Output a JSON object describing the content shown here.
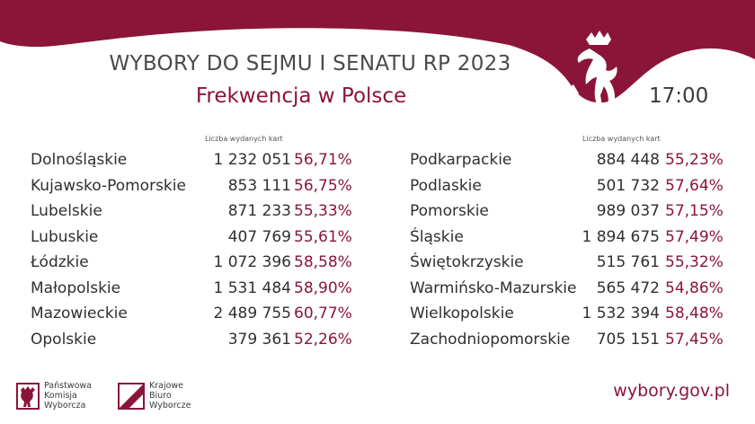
{
  "header": {
    "title": "WYBORY DO SEJMU I SENATU RP 2023",
    "subtitle": "Frekwencja w Polsce",
    "time": "17:00"
  },
  "columns": {
    "header_label": "Liczba wydanych kart",
    "left": [
      {
        "region": "Dolnośląskie",
        "cards": "1 232 051",
        "pct": "56,71%"
      },
      {
        "region": "Kujawsko-Pomorskie",
        "cards": "853 111",
        "pct": "56,75%"
      },
      {
        "region": "Lubelskie",
        "cards": "871 233",
        "pct": "55,33%"
      },
      {
        "region": "Lubuskie",
        "cards": "407 769",
        "pct": "55,61%"
      },
      {
        "region": "Łódzkie",
        "cards": "1 072 396",
        "pct": "58,58%"
      },
      {
        "region": "Małopolskie",
        "cards": "1 531 484",
        "pct": "58,90%"
      },
      {
        "region": "Mazowieckie",
        "cards": "2 489 755",
        "pct": "60,77%"
      },
      {
        "region": "Opolskie",
        "cards": "379 361",
        "pct": "52,26%"
      }
    ],
    "right": [
      {
        "region": "Podkarpackie",
        "cards": "884 448",
        "pct": "55,23%"
      },
      {
        "region": "Podlaskie",
        "cards": "501 732",
        "pct": "57,64%"
      },
      {
        "region": "Pomorskie",
        "cards": "989 037",
        "pct": "57,15%"
      },
      {
        "region": "Śląskie",
        "cards": "1 894 675",
        "pct": "57,49%"
      },
      {
        "region": "Świętokrzyskie",
        "cards": "515 761",
        "pct": "55,32%"
      },
      {
        "region": "Warmińsko-Mazurskie",
        "cards": "565 472",
        "pct": "54,86%"
      },
      {
        "region": "Wielkopolskie",
        "cards": "1 532 394",
        "pct": "58,48%"
      },
      {
        "region": "Zachodniopomorskie",
        "cards": "705 151",
        "pct": "57,45%"
      }
    ]
  },
  "footer": {
    "pkw_lines": [
      "Państwowa",
      "Komisja",
      "Wyborcza"
    ],
    "kbw_lines": [
      "Krajowe",
      "Biuro",
      "Wyborcze"
    ],
    "url": "wybory.gov.pl"
  },
  "colors": {
    "accent": "#8a1538",
    "text": "#3a3a3a"
  },
  "icons": [
    "eagle-icon",
    "pkw-logo-icon",
    "kbw-logo-icon"
  ]
}
